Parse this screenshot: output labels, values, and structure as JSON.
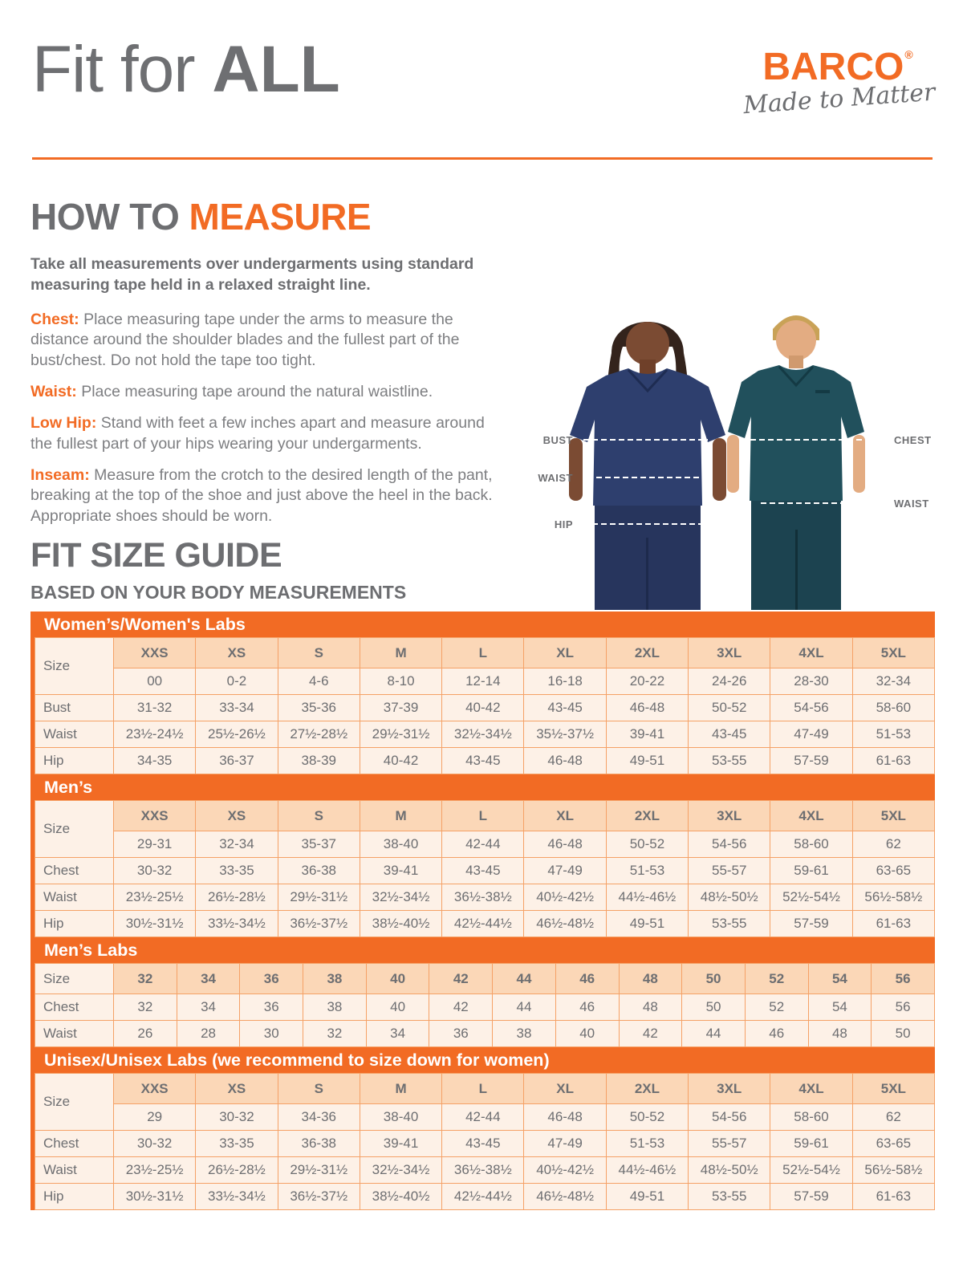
{
  "header": {
    "title_light": "Fit for ",
    "title_bold": "ALL"
  },
  "logo": {
    "name": "BARCO",
    "registered": "®",
    "tagline": "Made to Matter"
  },
  "how_to_measure": {
    "heading_prefix": "HOW TO ",
    "heading_accent": "MEASURE",
    "intro": "Take all measurements over undergarments using standard measuring tape held in a relaxed straight line.",
    "items": [
      {
        "label": "Chest:",
        "text": " Place measuring tape under the arms to measure the distance around the shoulder blades and the fullest part of the bust/chest. Do not hold the tape too tight."
      },
      {
        "label": "Waist:",
        "text": " Place measuring tape around the natural waistline."
      },
      {
        "label": "Low Hip:",
        "text": " Stand with feet a few inches apart and measure around the fullest part of your hips wearing your undergarments."
      },
      {
        "label": "Inseam:",
        "text": " Measure from the crotch to the desired length of the pant, breaking at the top of the shoe and just above the heel in the back. Appropriate shoes should be worn."
      }
    ]
  },
  "figure": {
    "left_labels": [
      "BUST",
      "WAIST",
      "HIP"
    ],
    "right_labels": [
      "CHEST",
      "WAIST"
    ]
  },
  "size_guide": {
    "heading": "FIT SIZE GUIDE",
    "subheading": "BASED ON YOUR BODY MEASUREMENTS",
    "corner_label": "Size",
    "tables": [
      {
        "title": "Women’s/Women's Labs",
        "sizes": [
          "XXS",
          "XS",
          "S",
          "M",
          "L",
          "XL",
          "2XL",
          "3XL",
          "4XL",
          "5XL"
        ],
        "alt_sizes": [
          "00",
          "0-2",
          "4-6",
          "8-10",
          "12-14",
          "16-18",
          "20-22",
          "24-26",
          "28-30",
          "32-34"
        ],
        "rows": [
          {
            "label": "Bust",
            "values": [
              "31-32",
              "33-34",
              "35-36",
              "37-39",
              "40-42",
              "43-45",
              "46-48",
              "50-52",
              "54-56",
              "58-60"
            ]
          },
          {
            "label": "Waist",
            "values": [
              "23½-24½",
              "25½-26½",
              "27½-28½",
              "29½-31½",
              "32½-34½",
              "35½-37½",
              "39-41",
              "43-45",
              "47-49",
              "51-53"
            ]
          },
          {
            "label": "Hip",
            "values": [
              "34-35",
              "36-37",
              "38-39",
              "40-42",
              "43-45",
              "46-48",
              "49-51",
              "53-55",
              "57-59",
              "61-63"
            ]
          }
        ]
      },
      {
        "title": "Men’s",
        "sizes": [
          "XXS",
          "XS",
          "S",
          "M",
          "L",
          "XL",
          "2XL",
          "3XL",
          "4XL",
          "5XL"
        ],
        "alt_sizes": [
          "29-31",
          "32-34",
          "35-37",
          "38-40",
          "42-44",
          "46-48",
          "50-52",
          "54-56",
          "58-60",
          "62"
        ],
        "rows": [
          {
            "label": "Chest",
            "values": [
              "30-32",
              "33-35",
              "36-38",
              "39-41",
              "43-45",
              "47-49",
              "51-53",
              "55-57",
              "59-61",
              "63-65"
            ]
          },
          {
            "label": "Waist",
            "values": [
              "23½-25½",
              "26½-28½",
              "29½-31½",
              "32½-34½",
              "36½-38½",
              "40½-42½",
              "44½-46½",
              "48½-50½",
              "52½-54½",
              "56½-58½"
            ]
          },
          {
            "label": "Hip",
            "values": [
              "30½-31½",
              "33½-34½",
              "36½-37½",
              "38½-40½",
              "42½-44½",
              "46½-48½",
              "49-51",
              "53-55",
              "57-59",
              "61-63"
            ]
          }
        ]
      },
      {
        "title": "Men’s Labs",
        "sizes": [
          "32",
          "34",
          "36",
          "38",
          "40",
          "42",
          "44",
          "46",
          "48",
          "50",
          "52",
          "54",
          "56"
        ],
        "alt_sizes": null,
        "rows": [
          {
            "label": "Chest",
            "values": [
              "32",
              "34",
              "36",
              "38",
              "40",
              "42",
              "44",
              "46",
              "48",
              "50",
              "52",
              "54",
              "56"
            ]
          },
          {
            "label": "Waist",
            "values": [
              "26",
              "28",
              "30",
              "32",
              "34",
              "36",
              "38",
              "40",
              "42",
              "44",
              "46",
              "48",
              "50"
            ]
          }
        ]
      },
      {
        "title": "Unisex/Unisex Labs (we recommend to size down for women)",
        "sizes": [
          "XXS",
          "XS",
          "S",
          "M",
          "L",
          "XL",
          "2XL",
          "3XL",
          "4XL",
          "5XL"
        ],
        "alt_sizes": [
          "29",
          "30-32",
          "34-36",
          "38-40",
          "42-44",
          "46-48",
          "50-52",
          "54-56",
          "58-60",
          "62"
        ],
        "rows": [
          {
            "label": "Chest",
            "values": [
              "30-32",
              "33-35",
              "36-38",
              "39-41",
              "43-45",
              "47-49",
              "51-53",
              "55-57",
              "59-61",
              "63-65"
            ]
          },
          {
            "label": "Waist",
            "values": [
              "23½-25½",
              "26½-28½",
              "29½-31½",
              "32½-34½",
              "36½-38½",
              "40½-42½",
              "44½-46½",
              "48½-50½",
              "52½-54½",
              "56½-58½"
            ]
          },
          {
            "label": "Hip",
            "values": [
              "30½-31½",
              "33½-34½",
              "36½-37½",
              "38½-40½",
              "42½-44½",
              "46½-48½",
              "49-51",
              "53-55",
              "57-59",
              "61-63"
            ]
          }
        ]
      }
    ]
  },
  "colors": {
    "accent_orange": "#f26b24",
    "text_gray": "#6d6e71",
    "band_text": "#ffffff",
    "size_cell_bg": "#fbd7b7",
    "cell_bg": "#fdf1e7",
    "table_border": "#f5a166",
    "woman_scrubs": "#2e3f6e",
    "man_scrubs": "#21505c"
  }
}
